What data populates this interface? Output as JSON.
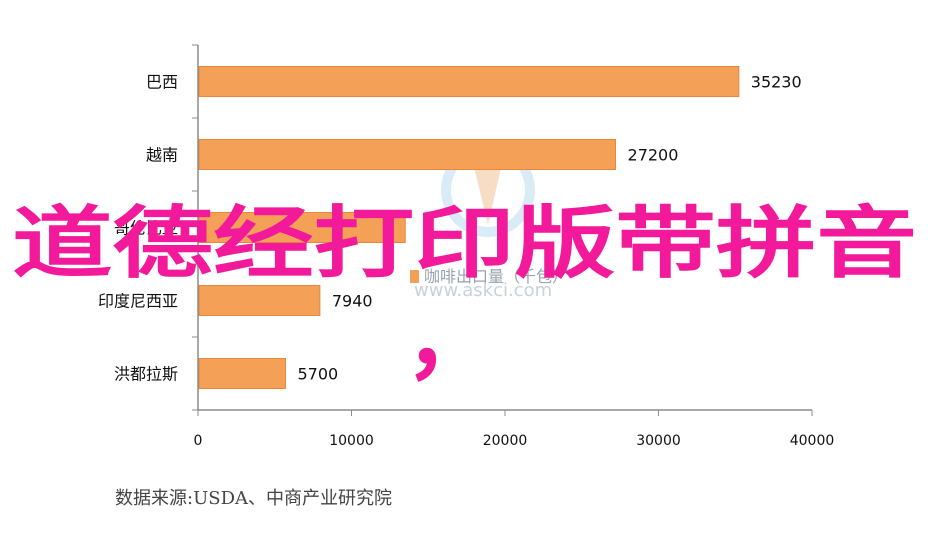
{
  "chart_data": {
    "type": "bar",
    "orientation": "horizontal",
    "categories": [
      "巴西",
      "越南",
      "哥伦比亚",
      "印度尼西亚",
      "洪都拉斯"
    ],
    "values": [
      35230,
      27200,
      13500,
      7940,
      5700
    ],
    "value_labels": [
      "35230",
      "27200",
      "",
      "7940",
      "5700"
    ],
    "category_labels": [
      "巴西",
      "越南",
      "哥伦比亚",
      "印度尼西亚",
      "洪都拉斯"
    ],
    "xlim": [
      0,
      40000
    ],
    "xticks": [
      0,
      10000,
      20000,
      30000,
      40000
    ],
    "xtick_labels": [
      "0",
      "10000",
      "20000",
      "30000",
      "40000"
    ],
    "grid": false,
    "bar_color": "#f4a157",
    "bar_edge_color": "#e8873a"
  },
  "source_note": "数据来源:USDA、中商产业研究院",
  "overlay": {
    "title": "道德经打印版带拼音",
    "comma": "，",
    "title_color": "#f2199a"
  },
  "watermark": {
    "caption": "咖啡出口量（千包）",
    "url": "www.askci.com",
    "icon": "askci-logo-icon"
  }
}
